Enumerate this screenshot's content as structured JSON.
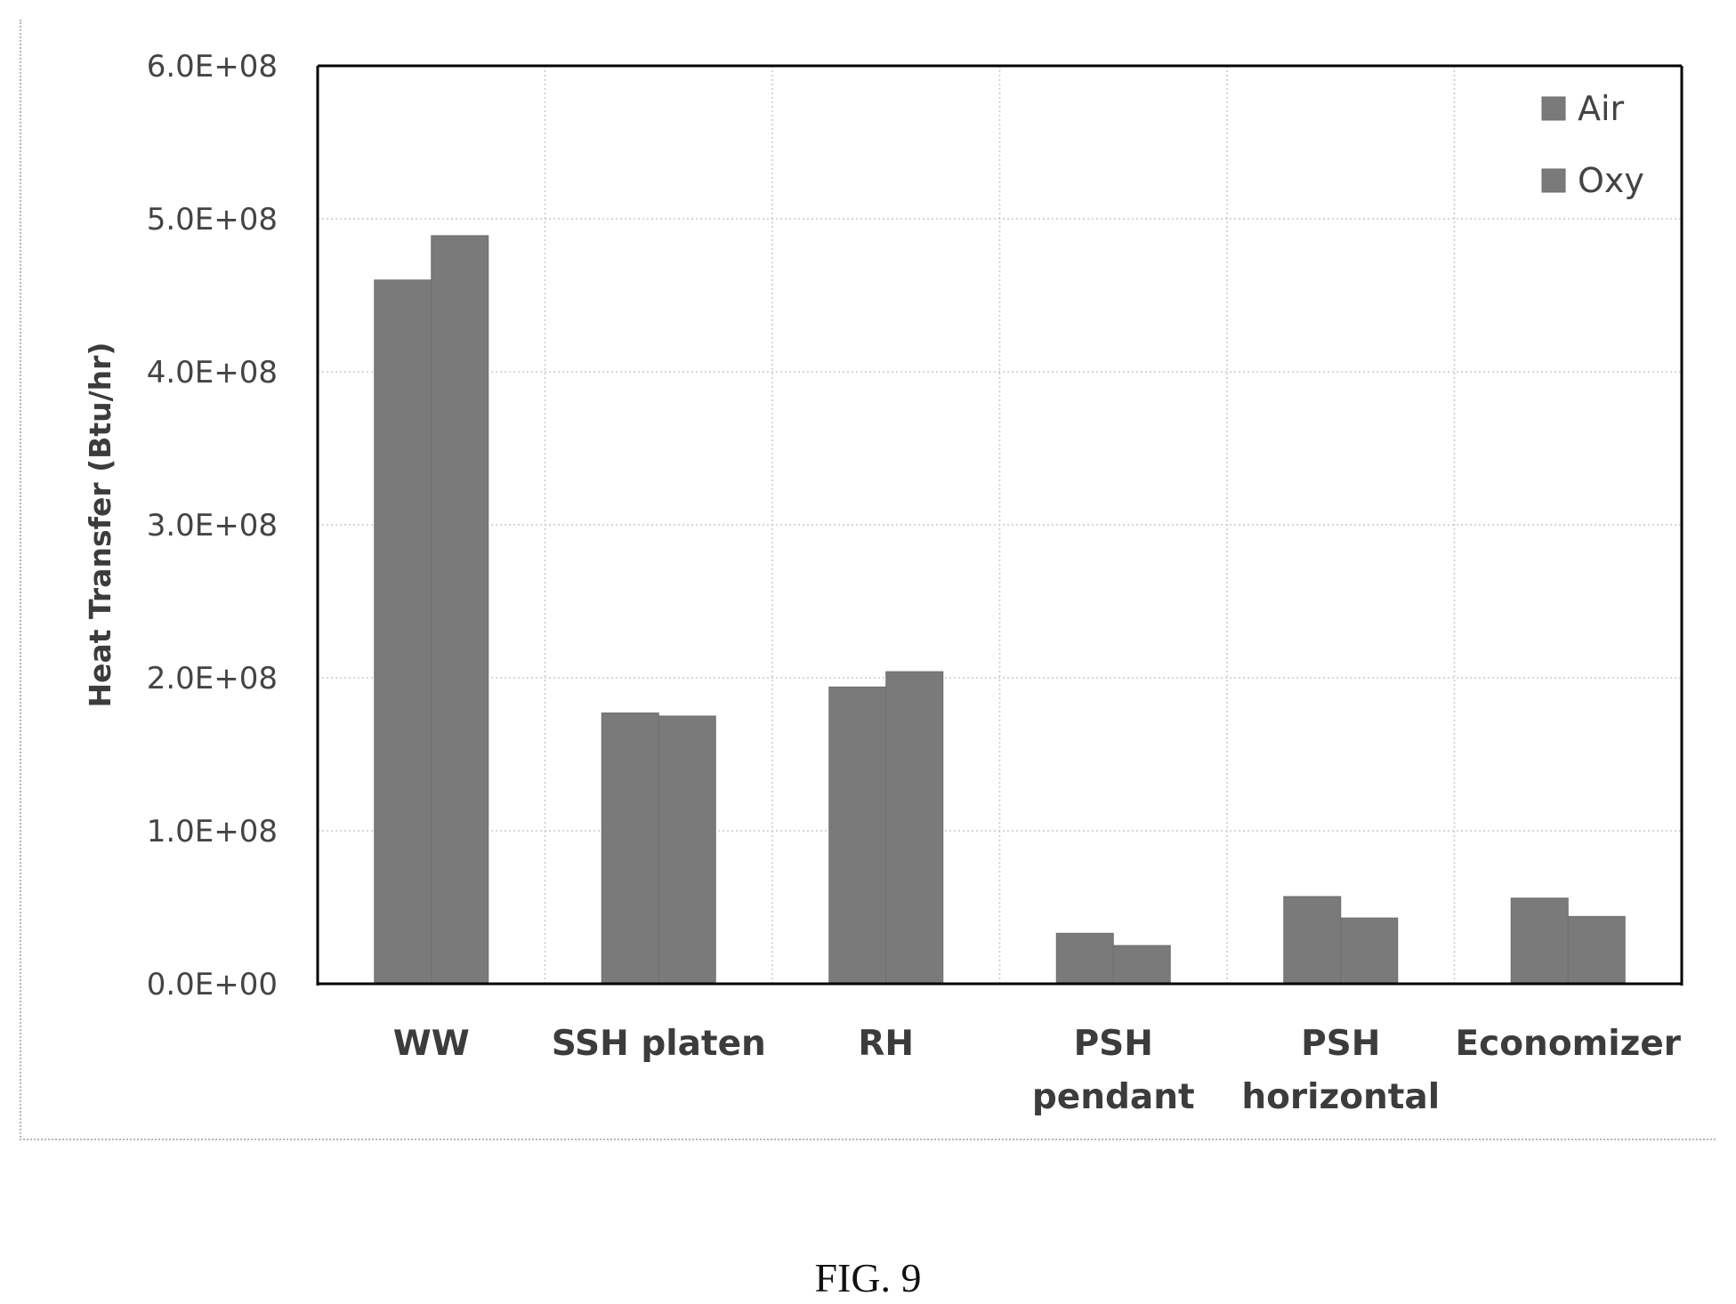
{
  "figure_label": "FIG. 9",
  "colors": {
    "bar": "#7a7a7a",
    "bar_edge": "#6e6e6e",
    "grid": "#c8c8c8",
    "axis": "#000000"
  },
  "chart_data": {
    "type": "bar",
    "title": "",
    "xlabel": "",
    "ylabel": "Heat Transfer (Btu/hr)",
    "ylim": [
      0,
      600000000
    ],
    "yticks": [
      0,
      100000000,
      200000000,
      300000000,
      400000000,
      500000000,
      600000000
    ],
    "ytick_labels": [
      "0.0E+00",
      "1.0E+08",
      "2.0E+08",
      "3.0E+08",
      "4.0E+08",
      "5.0E+08",
      "6.0E+08"
    ],
    "categories": [
      "WW",
      "SSH platen",
      "RH",
      "PSH pendant",
      "PSH horizontal",
      "Economizer"
    ],
    "category_lines": [
      [
        "WW"
      ],
      [
        "SSH platen"
      ],
      [
        "RH"
      ],
      [
        "PSH",
        "pendant"
      ],
      [
        "PSH",
        "horizontal"
      ],
      [
        "Economizer"
      ]
    ],
    "series": [
      {
        "name": "Air",
        "values": [
          460000000,
          177000000,
          194000000,
          33000000,
          57000000,
          56000000
        ]
      },
      {
        "name": "Oxy",
        "values": [
          489000000,
          175000000,
          204000000,
          25000000,
          43000000,
          44000000
        ]
      }
    ],
    "grid": true,
    "legend_position": "top-right"
  }
}
